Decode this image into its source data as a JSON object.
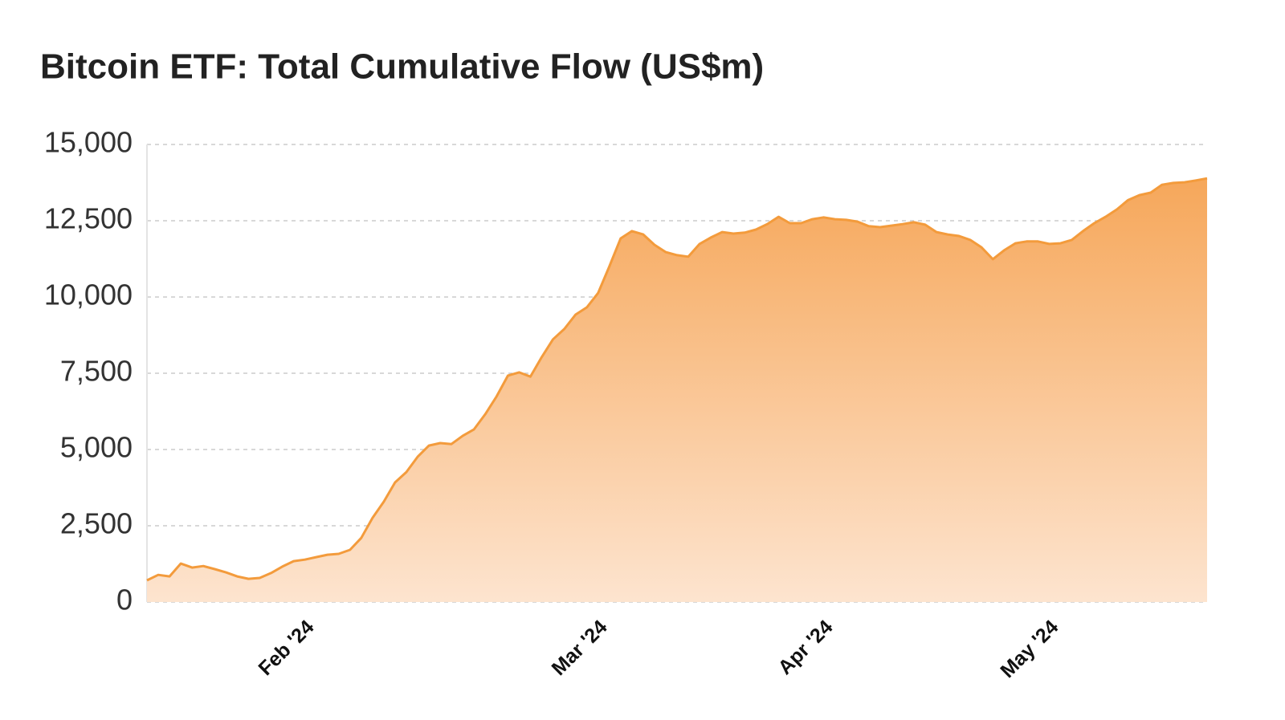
{
  "chart_data": {
    "type": "area",
    "title": "Bitcoin ETF: Total Cumulative Flow (US$m)",
    "categories": [
      null,
      null,
      null,
      null,
      null,
      null,
      null,
      null,
      null,
      null,
      null,
      null,
      null,
      null,
      "Feb '24",
      null,
      null,
      null,
      null,
      null,
      null,
      null,
      null,
      null,
      null,
      null,
      null,
      null,
      null,
      null,
      null,
      null,
      null,
      null,
      null,
      null,
      null,
      null,
      null,
      null,
      "Mar '24",
      null,
      null,
      null,
      null,
      null,
      null,
      null,
      null,
      null,
      null,
      null,
      null,
      null,
      null,
      null,
      null,
      null,
      null,
      null,
      "Apr '24",
      null,
      null,
      null,
      null,
      null,
      null,
      null,
      null,
      null,
      null,
      null,
      null,
      null,
      null,
      null,
      null,
      null,
      null,
      null,
      "May '24",
      null,
      null,
      null,
      null,
      null,
      null,
      null,
      null,
      null,
      null,
      null,
      null,
      null,
      null
    ],
    "values": [
      710,
      890,
      840,
      1260,
      1130,
      1180,
      1080,
      970,
      840,
      760,
      790,
      950,
      1160,
      1340,
      1390,
      1470,
      1550,
      1580,
      1710,
      2100,
      2760,
      3290,
      3920,
      4260,
      4760,
      5130,
      5210,
      5180,
      5450,
      5660,
      6160,
      6740,
      7420,
      7530,
      7390,
      8030,
      8610,
      8950,
      9420,
      9660,
      10130,
      11000,
      11920,
      12160,
      12050,
      11710,
      11470,
      11370,
      11320,
      11740,
      11950,
      12130,
      12080,
      12110,
      12210,
      12390,
      12630,
      12420,
      12420,
      12550,
      12610,
      12550,
      12530,
      12470,
      12320,
      12290,
      12340,
      12390,
      12450,
      12370,
      12130,
      12050,
      12000,
      11870,
      11630,
      11240,
      11530,
      11760,
      11820,
      11820,
      11740,
      11760,
      11870,
      12160,
      12420,
      12630,
      12870,
      13180,
      13340,
      13420,
      13680,
      13740,
      13760,
      13820,
      13890
    ],
    "color": "#f39b3c",
    "ylim": [
      0,
      15000
    ],
    "yticks": [
      0,
      {
        "value": 2500,
        "label": "2,500"
      },
      {
        "value": 5000,
        "label": "5,000"
      },
      {
        "value": 7500,
        "label": "7,500"
      },
      {
        "value": 10000,
        "label": "10,000"
      },
      {
        "value": 12500,
        "label": "12,500"
      },
      {
        "value": 15000,
        "label": "15,000"
      }
    ],
    "grid": true
  }
}
